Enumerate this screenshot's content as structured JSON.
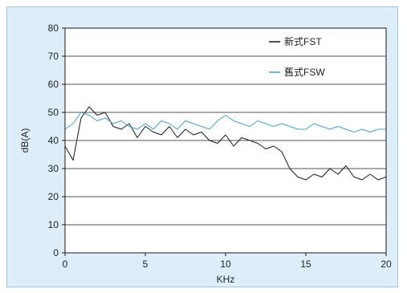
{
  "chart_data": {
    "type": "line",
    "title": "",
    "xlabel": "KHz",
    "ylabel": "dB(A)",
    "xlim": [
      0,
      20
    ],
    "ylim": [
      0,
      80
    ],
    "xticks": [
      "0",
      "5",
      "10",
      "15",
      "20"
    ],
    "yticks": [
      "0",
      "10",
      "20",
      "30",
      "40",
      "50",
      "60",
      "70",
      "80"
    ],
    "grid": "horizontal",
    "legend_position": "top-right",
    "x": [
      0.0,
      0.5,
      1.0,
      1.5,
      2.0,
      2.5,
      3.0,
      3.5,
      4.0,
      4.5,
      5.0,
      5.5,
      6.0,
      6.5,
      7.0,
      7.5,
      8.0,
      8.5,
      9.0,
      9.5,
      10.0,
      10.5,
      11.0,
      11.5,
      12.0,
      12.5,
      13.0,
      13.5,
      14.0,
      14.5,
      15.0,
      15.5,
      16.0,
      16.5,
      17.0,
      17.5,
      18.0,
      18.5,
      19.0,
      19.5,
      20.0
    ],
    "series": [
      {
        "name": "新式FST",
        "color": "#1a1a1a",
        "values": [
          38,
          33,
          48,
          52,
          49,
          50,
          45,
          44,
          46,
          41,
          45,
          43,
          42,
          45,
          41,
          44,
          42,
          43,
          40,
          39,
          42,
          38,
          41,
          40,
          39,
          37,
          38,
          36,
          30,
          27,
          26,
          28,
          27,
          30,
          28,
          31,
          27,
          26,
          28,
          26,
          27
        ]
      },
      {
        "name": "舊式FSW",
        "color": "#3aa6d8",
        "values": [
          44,
          46,
          50,
          49,
          47,
          48,
          46,
          47,
          45,
          44,
          46,
          44,
          47,
          46,
          44,
          47,
          46,
          45,
          44,
          47,
          49,
          47,
          46,
          45,
          47,
          46,
          45,
          46,
          45,
          44,
          44,
          46,
          45,
          44,
          45,
          44,
          43,
          44,
          43,
          44,
          44
        ]
      }
    ]
  }
}
